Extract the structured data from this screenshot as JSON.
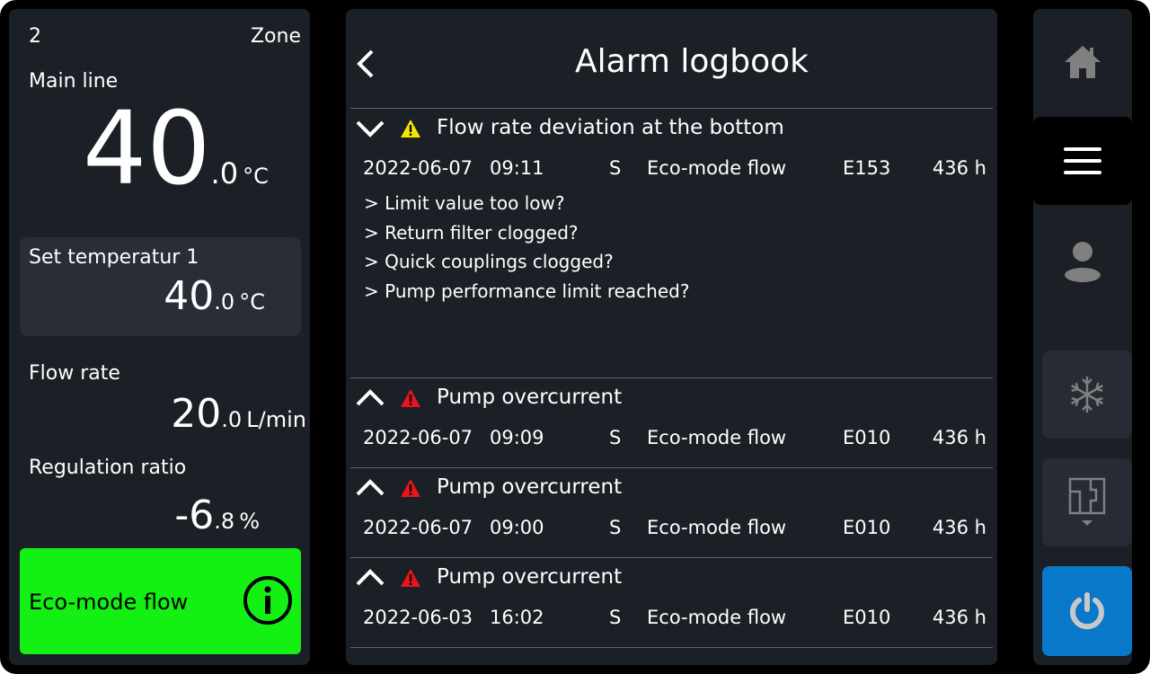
{
  "left": {
    "zone_number": "2",
    "zone_label": "Zone",
    "main_line_label": "Main line",
    "main_line_int": "40",
    "main_line_dec": ".0",
    "main_line_unit": "°C",
    "set_temp_label": "Set temperatur 1",
    "set_temp_int": "40",
    "set_temp_dec": ".0",
    "set_temp_unit": "°C",
    "flow_label": "Flow rate",
    "flow_int": "20",
    "flow_dec": ".0",
    "flow_unit": "L/min",
    "reg_label": "Regulation ratio",
    "reg_int": "-6",
    "reg_dec": ".8",
    "reg_unit": "%",
    "mode_label": "Eco-mode flow",
    "mode_color": "#14f014"
  },
  "header": {
    "title": "Alarm logbook"
  },
  "alarms": [
    {
      "title": "Flow rate deviation at the bottom",
      "severity": "warning",
      "expanded": true,
      "date": "2022-06-07",
      "time": "09:11",
      "type": "S",
      "mode": "Eco-mode flow",
      "code": "E153",
      "hours": "436 h",
      "hints": [
        "> Limit value too low?",
        "> Return filter clogged?",
        "> Quick couplings clogged?",
        "> Pump performance limit reached?"
      ]
    },
    {
      "title": "Pump overcurrent",
      "severity": "error",
      "expanded": false,
      "date": "2022-06-07",
      "time": "09:09",
      "type": "S",
      "mode": "Eco-mode flow",
      "code": "E010",
      "hours": "436 h"
    },
    {
      "title": "Pump overcurrent",
      "severity": "error",
      "expanded": false,
      "date": "2022-06-07",
      "time": "09:00",
      "type": "S",
      "mode": "Eco-mode flow",
      "code": "E010",
      "hours": "436 h"
    },
    {
      "title": "Pump overcurrent",
      "severity": "error",
      "expanded": false,
      "date": "2022-06-03",
      "time": "16:02",
      "type": "S",
      "mode": "Eco-mode flow",
      "code": "E010",
      "hours": "436 h"
    }
  ],
  "colors": {
    "warning": "#f5e600",
    "error": "#e8141e",
    "power": "#0a78c8",
    "panel": "#1b1f26"
  },
  "nav": [
    "home-icon",
    "menu-icon",
    "user-icon",
    "snowflake-icon",
    "floorplan-icon",
    "power-icon"
  ]
}
